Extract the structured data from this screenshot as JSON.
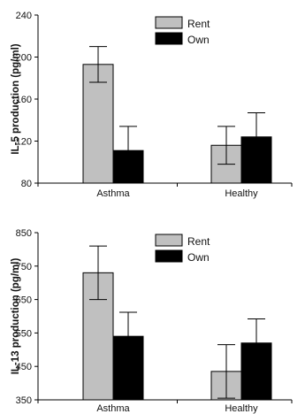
{
  "chart_data": [
    {
      "type": "bar",
      "ylabel": "IL-5 production (pg/ml)",
      "categories": [
        "Asthma",
        "Healthy"
      ],
      "ylim": [
        80,
        240
      ],
      "yticks": [
        80,
        120,
        160,
        200,
        240
      ],
      "legend_position": "top-right",
      "series": [
        {
          "name": "Rent",
          "color": "#c0c0c0",
          "values": [
            193,
            116
          ],
          "errors": [
            17,
            18
          ]
        },
        {
          "name": "Own",
          "color": "#000000",
          "values": [
            111,
            124
          ],
          "errors": [
            23,
            23
          ]
        }
      ]
    },
    {
      "type": "bar",
      "ylabel": "IL-13 production (pg/ml)",
      "categories": [
        "Asthma",
        "Healthy"
      ],
      "ylim": [
        350,
        850
      ],
      "yticks": [
        350,
        450,
        550,
        650,
        750,
        850
      ],
      "legend_position": "top-right",
      "series": [
        {
          "name": "Rent",
          "color": "#c0c0c0",
          "values": [
            730,
            435
          ],
          "errors": [
            80,
            80
          ]
        },
        {
          "name": "Own",
          "color": "#000000",
          "values": [
            540,
            520
          ],
          "errors": [
            72,
            72
          ]
        }
      ]
    }
  ]
}
